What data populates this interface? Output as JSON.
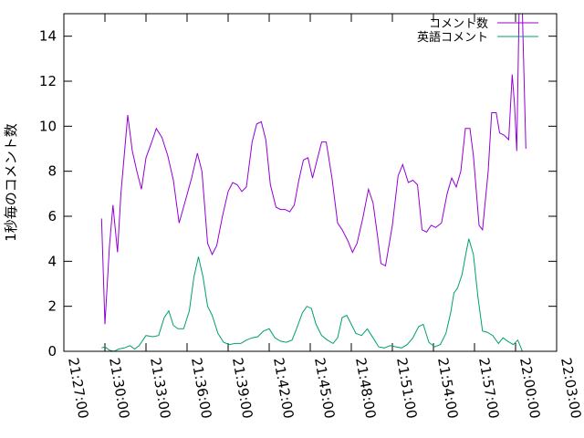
{
  "chart_data": {
    "type": "line",
    "title": "",
    "xlabel": "",
    "ylabel": "1秒毎のコメント数",
    "x_ticks": [
      "21:27:00",
      "21:30:00",
      "21:33:00",
      "21:36:00",
      "21:39:00",
      "21:42:00",
      "21:45:00",
      "21:48:00",
      "21:51:00",
      "21:54:00",
      "21:57:00",
      "22:00:00",
      "22:03:00"
    ],
    "xlim": [
      "21:27:00",
      "22:03:00"
    ],
    "ylim": [
      0,
      15
    ],
    "y_ticks": [
      0,
      2,
      4,
      6,
      8,
      10,
      12,
      14
    ],
    "grid": false,
    "legend": {
      "position": "top-right"
    },
    "series": [
      {
        "name": "コメント数",
        "color": "#9400d3",
        "points": [
          [
            "21:29:45",
            5.9
          ],
          [
            "21:30:00",
            1.2
          ],
          [
            "21:30:20",
            4.7
          ],
          [
            "21:30:35",
            6.5
          ],
          [
            "21:30:55",
            4.4
          ],
          [
            "21:31:10",
            7.0
          ],
          [
            "21:31:40",
            10.5
          ],
          [
            "21:32:00",
            8.9
          ],
          [
            "21:32:20",
            8.0
          ],
          [
            "21:32:40",
            7.2
          ],
          [
            "21:33:00",
            8.6
          ],
          [
            "21:33:25",
            9.3
          ],
          [
            "21:33:45",
            9.9
          ],
          [
            "21:34:10",
            9.5
          ],
          [
            "21:34:35",
            8.7
          ],
          [
            "21:35:00",
            7.6
          ],
          [
            "21:35:25",
            5.7
          ],
          [
            "21:35:50",
            6.6
          ],
          [
            "21:36:20",
            7.7
          ],
          [
            "21:36:45",
            8.8
          ],
          [
            "21:37:05",
            8.0
          ],
          [
            "21:37:30",
            4.8
          ],
          [
            "21:37:50",
            4.3
          ],
          [
            "21:38:10",
            4.7
          ],
          [
            "21:38:35",
            6.0
          ],
          [
            "21:39:00",
            7.1
          ],
          [
            "21:39:20",
            7.5
          ],
          [
            "21:39:40",
            7.4
          ],
          [
            "21:40:00",
            7.1
          ],
          [
            "21:40:20",
            7.3
          ],
          [
            "21:40:45",
            9.3
          ],
          [
            "21:41:05",
            10.1
          ],
          [
            "21:41:25",
            10.2
          ],
          [
            "21:41:45",
            9.4
          ],
          [
            "21:42:05",
            7.4
          ],
          [
            "21:42:30",
            6.4
          ],
          [
            "21:42:50",
            6.3
          ],
          [
            "21:43:10",
            6.3
          ],
          [
            "21:43:30",
            6.2
          ],
          [
            "21:43:50",
            6.5
          ],
          [
            "21:44:10",
            7.6
          ],
          [
            "21:44:30",
            8.5
          ],
          [
            "21:44:50",
            8.6
          ],
          [
            "21:45:10",
            7.7
          ],
          [
            "21:45:30",
            8.5
          ],
          [
            "21:45:50",
            9.3
          ],
          [
            "21:46:10",
            9.3
          ],
          [
            "21:46:35",
            7.7
          ],
          [
            "21:47:00",
            5.7
          ],
          [
            "21:47:20",
            5.4
          ],
          [
            "21:47:45",
            4.9
          ],
          [
            "21:48:05",
            4.4
          ],
          [
            "21:48:25",
            4.8
          ],
          [
            "21:48:50",
            5.9
          ],
          [
            "21:49:15",
            7.2
          ],
          [
            "21:49:35",
            6.6
          ],
          [
            "21:49:55",
            5.1
          ],
          [
            "21:50:10",
            3.9
          ],
          [
            "21:50:30",
            3.8
          ],
          [
            "21:51:00",
            5.6
          ],
          [
            "21:51:25",
            7.8
          ],
          [
            "21:51:45",
            8.3
          ],
          [
            "21:52:10",
            7.5
          ],
          [
            "21:52:30",
            7.6
          ],
          [
            "21:52:50",
            7.4
          ],
          [
            "21:53:10",
            5.4
          ],
          [
            "21:53:30",
            5.3
          ],
          [
            "21:53:50",
            5.6
          ],
          [
            "21:54:10",
            5.5
          ],
          [
            "21:54:35",
            5.7
          ],
          [
            "21:55:00",
            7.0
          ],
          [
            "21:55:20",
            7.7
          ],
          [
            "21:55:40",
            7.3
          ],
          [
            "21:56:00",
            8.0
          ],
          [
            "21:56:20",
            9.9
          ],
          [
            "21:56:40",
            9.9
          ],
          [
            "21:56:55",
            8.7
          ],
          [
            "21:57:20",
            5.6
          ],
          [
            "21:57:35",
            5.4
          ],
          [
            "21:58:00",
            8.0
          ],
          [
            "21:58:15",
            10.6
          ],
          [
            "21:58:35",
            10.6
          ],
          [
            "21:58:50",
            9.7
          ],
          [
            "21:59:10",
            9.6
          ],
          [
            "21:59:30",
            9.4
          ],
          [
            "21:59:45",
            12.3
          ],
          [
            "21:59:55",
            11.0
          ],
          [
            "22:00:05",
            8.9
          ],
          [
            "22:00:15",
            15.0
          ],
          [
            "22:00:30",
            15.0
          ],
          [
            "22:00:45",
            9.0
          ]
        ]
      },
      {
        "name": "英語コメント",
        "color": "#009e73",
        "points": [
          [
            "21:29:45",
            0.15
          ],
          [
            "21:30:00",
            0.2
          ],
          [
            "21:30:20",
            0.05
          ],
          [
            "21:30:40",
            0.0
          ],
          [
            "21:31:00",
            0.1
          ],
          [
            "21:31:25",
            0.15
          ],
          [
            "21:31:50",
            0.25
          ],
          [
            "21:32:10",
            0.1
          ],
          [
            "21:32:30",
            0.25
          ],
          [
            "21:33:00",
            0.7
          ],
          [
            "21:33:30",
            0.65
          ],
          [
            "21:33:55",
            0.7
          ],
          [
            "21:34:20",
            1.5
          ],
          [
            "21:34:40",
            1.8
          ],
          [
            "21:35:00",
            1.15
          ],
          [
            "21:35:20",
            1.0
          ],
          [
            "21:35:45",
            1.0
          ],
          [
            "21:36:10",
            1.8
          ],
          [
            "21:36:30",
            3.3
          ],
          [
            "21:36:50",
            4.2
          ],
          [
            "21:37:10",
            3.3
          ],
          [
            "21:37:30",
            2.0
          ],
          [
            "21:37:50",
            1.6
          ],
          [
            "21:38:15",
            0.8
          ],
          [
            "21:38:40",
            0.4
          ],
          [
            "21:39:05",
            0.3
          ],
          [
            "21:39:30",
            0.35
          ],
          [
            "21:39:55",
            0.35
          ],
          [
            "21:40:20",
            0.5
          ],
          [
            "21:40:45",
            0.6
          ],
          [
            "21:41:10",
            0.65
          ],
          [
            "21:41:35",
            0.9
          ],
          [
            "21:42:00",
            1.0
          ],
          [
            "21:42:25",
            0.6
          ],
          [
            "21:42:50",
            0.45
          ],
          [
            "21:43:15",
            0.4
          ],
          [
            "21:43:40",
            0.5
          ],
          [
            "21:44:00",
            1.0
          ],
          [
            "21:44:25",
            1.7
          ],
          [
            "21:44:45",
            2.0
          ],
          [
            "21:45:05",
            1.9
          ],
          [
            "21:45:25",
            1.2
          ],
          [
            "21:45:50",
            0.7
          ],
          [
            "21:46:15",
            0.5
          ],
          [
            "21:46:40",
            0.35
          ],
          [
            "21:47:00",
            0.6
          ],
          [
            "21:47:20",
            1.5
          ],
          [
            "21:47:40",
            1.6
          ],
          [
            "21:48:00",
            1.2
          ],
          [
            "21:48:20",
            0.8
          ],
          [
            "21:48:45",
            0.7
          ],
          [
            "21:49:10",
            1.0
          ],
          [
            "21:49:35",
            0.6
          ],
          [
            "21:50:00",
            0.2
          ],
          [
            "21:50:25",
            0.15
          ],
          [
            "21:50:50",
            0.25
          ],
          [
            "21:51:15",
            0.2
          ],
          [
            "21:51:40",
            0.15
          ],
          [
            "21:52:05",
            0.3
          ],
          [
            "21:52:30",
            0.6
          ],
          [
            "21:52:55",
            1.1
          ],
          [
            "21:53:15",
            1.2
          ],
          [
            "21:53:40",
            0.4
          ],
          [
            "21:54:05",
            0.2
          ],
          [
            "21:54:30",
            0.3
          ],
          [
            "21:54:55",
            0.8
          ],
          [
            "21:55:15",
            1.7
          ],
          [
            "21:55:30",
            2.6
          ],
          [
            "21:55:45",
            2.8
          ],
          [
            "21:56:05",
            3.4
          ],
          [
            "21:56:25",
            4.5
          ],
          [
            "21:56:35",
            5.0
          ],
          [
            "21:56:55",
            4.3
          ],
          [
            "21:57:15",
            2.4
          ],
          [
            "21:57:35",
            0.9
          ],
          [
            "21:57:55",
            0.85
          ],
          [
            "21:58:20",
            0.7
          ],
          [
            "21:58:45",
            0.35
          ],
          [
            "21:59:05",
            0.6
          ],
          [
            "21:59:25",
            0.45
          ],
          [
            "21:59:50",
            0.3
          ],
          [
            "22:00:10",
            0.5
          ],
          [
            "22:00:30",
            0.0
          ]
        ]
      }
    ]
  }
}
